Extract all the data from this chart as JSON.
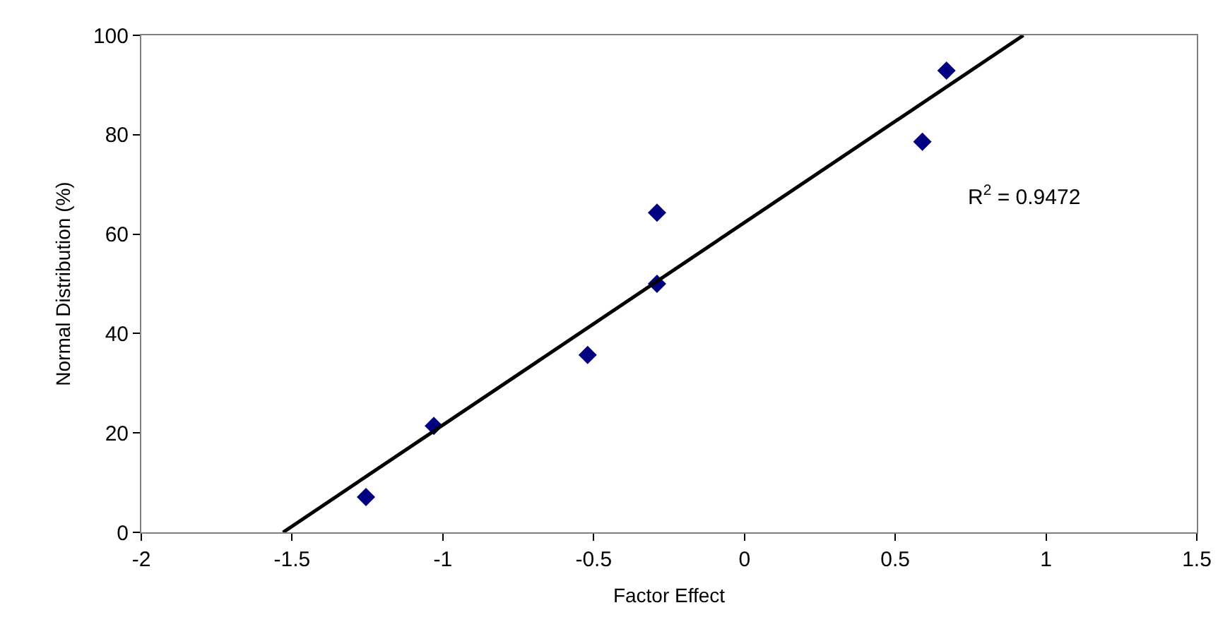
{
  "chart_data": {
    "type": "scatter",
    "xlabel": "Factor Effect",
    "ylabel": "Normal Distribution (%)",
    "series": [
      {
        "color": "#000080",
        "marker": "diamond",
        "values": [
          7.1,
          21.4,
          35.7,
          50,
          64.3,
          78.6,
          92.9
        ],
        "x": [
          -1.255,
          -1.03,
          -0.52,
          -0.29,
          -0.29,
          0.59,
          0.67
        ]
      },
      {
        "type": "line",
        "color": "#000000",
        "marker": "none",
        "line_style": "solid",
        "x": [
          -1.53,
          0.925
        ],
        "values": [
          0,
          100
        ]
      }
    ],
    "annotations": [
      "R$^{2}$ = 0.9472"
    ],
    "xlim": [
      -2,
      1.5
    ],
    "xticks": [
      -2,
      -1.5,
      -1,
      -0.5,
      0,
      0.5,
      1,
      1.5
    ],
    "ylim": [
      0,
      100
    ],
    "yticks": [
      0,
      20,
      40,
      60,
      80,
      100
    ],
    "grid": false
  }
}
